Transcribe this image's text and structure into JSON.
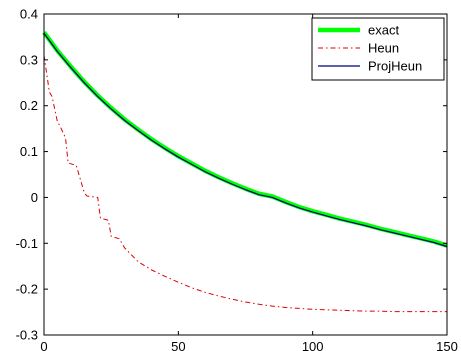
{
  "chart_data": {
    "type": "line",
    "title": "",
    "xlabel": "",
    "ylabel": "",
    "xlim": [
      0,
      150
    ],
    "ylim": [
      -0.3,
      0.4
    ],
    "xticks": [
      0,
      50,
      100,
      150
    ],
    "yticks": [
      -0.3,
      -0.2,
      -0.1,
      0,
      0.1,
      0.2,
      0.3,
      0.4
    ],
    "xtick_labels": [
      "0",
      "50",
      "100",
      "150"
    ],
    "ytick_labels": [
      "-0.3",
      "-0.2",
      "-0.1",
      "0",
      "0.1",
      "0.2",
      "0.3",
      "0.4"
    ],
    "grid": false,
    "legend_position": "top-right",
    "series": [
      {
        "name": "exact",
        "color": "#00ff00",
        "style": "solid-thick",
        "x": [
          0,
          5,
          10,
          15,
          20,
          25,
          30,
          35,
          40,
          45,
          50,
          55,
          60,
          65,
          70,
          75,
          80,
          85,
          90,
          95,
          100,
          105,
          110,
          115,
          120,
          125,
          130,
          135,
          140,
          145,
          150
        ],
        "y": [
          0.36,
          0.32,
          0.285,
          0.252,
          0.222,
          0.195,
          0.17,
          0.148,
          0.127,
          0.108,
          0.09,
          0.074,
          0.058,
          0.044,
          0.031,
          0.019,
          0.008,
          0.002,
          -0.01,
          -0.021,
          -0.03,
          -0.038,
          -0.046,
          -0.053,
          -0.06,
          -0.068,
          -0.075,
          -0.082,
          -0.089,
          -0.096,
          -0.105
        ]
      },
      {
        "name": "Heun",
        "color": "#dd0000",
        "style": "dash-dot",
        "x": [
          0,
          2,
          3,
          5,
          6,
          8,
          9,
          12,
          13,
          15,
          16,
          20,
          21,
          24,
          25,
          28,
          30,
          35,
          40,
          45,
          50,
          55,
          60,
          65,
          70,
          75,
          80,
          85,
          90,
          95,
          100,
          105,
          110,
          115,
          120,
          125,
          130,
          135,
          140,
          145,
          150
        ],
        "y": [
          0.31,
          0.23,
          0.22,
          0.165,
          0.155,
          0.13,
          0.075,
          0.07,
          0.05,
          0.01,
          0.003,
          0.0,
          -0.045,
          -0.05,
          -0.085,
          -0.09,
          -0.11,
          -0.14,
          -0.158,
          -0.172,
          -0.185,
          -0.197,
          -0.207,
          -0.215,
          -0.222,
          -0.228,
          -0.233,
          -0.237,
          -0.24,
          -0.242,
          -0.244,
          -0.245,
          -0.246,
          -0.247,
          -0.248,
          -0.248,
          -0.249,
          -0.249,
          -0.249,
          -0.249,
          -0.249
        ]
      },
      {
        "name": "ProjHeun",
        "color": "#000080",
        "style": "solid-thin",
        "x": [
          0,
          5,
          10,
          15,
          20,
          25,
          30,
          35,
          40,
          45,
          50,
          55,
          60,
          65,
          70,
          75,
          80,
          85,
          90,
          95,
          100,
          105,
          110,
          115,
          120,
          125,
          130,
          135,
          140,
          145,
          150
        ],
        "y": [
          0.358,
          0.318,
          0.283,
          0.25,
          0.22,
          0.193,
          0.168,
          0.146,
          0.125,
          0.106,
          0.088,
          0.072,
          0.056,
          0.042,
          0.029,
          0.017,
          0.006,
          0.0,
          -0.012,
          -0.023,
          -0.032,
          -0.04,
          -0.048,
          -0.055,
          -0.062,
          -0.07,
          -0.077,
          -0.084,
          -0.091,
          -0.098,
          -0.107
        ]
      }
    ]
  }
}
